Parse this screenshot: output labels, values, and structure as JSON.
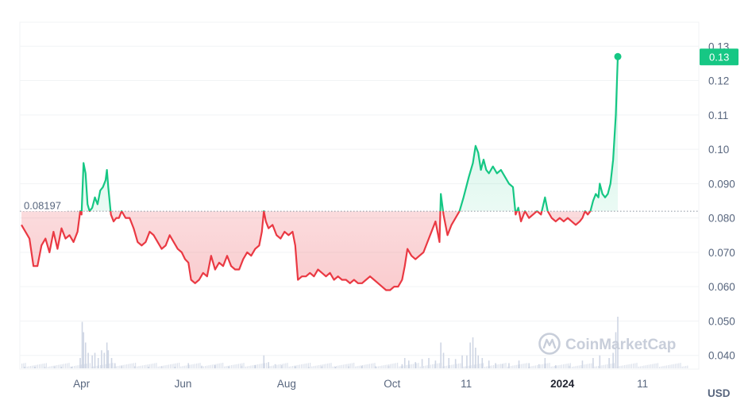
{
  "chart_data": {
    "type": "line",
    "reference_value": 0.08197,
    "reference_label": "0.08197",
    "current_value": 0.127,
    "current_label": "0.13",
    "currency_label": "USD",
    "watermark": "CoinMarketCap",
    "ylim": [
      0.036,
      0.137
    ],
    "y_ticks": [
      {
        "value": 0.13,
        "label": "0.13"
      },
      {
        "value": 0.12,
        "label": "0.12"
      },
      {
        "value": 0.11,
        "label": "0.11"
      },
      {
        "value": 0.1,
        "label": "0.10"
      },
      {
        "value": 0.09,
        "label": "0.090"
      },
      {
        "value": 0.08,
        "label": "0.080"
      },
      {
        "value": 0.07,
        "label": "0.070"
      },
      {
        "value": 0.06,
        "label": "0.060"
      },
      {
        "value": 0.05,
        "label": "0.050"
      },
      {
        "value": 0.04,
        "label": "0.040"
      }
    ],
    "x_ticks": [
      {
        "t": 0.09,
        "label": "Apr",
        "bold": false
      },
      {
        "t": 0.242,
        "label": "Jun",
        "bold": false
      },
      {
        "t": 0.397,
        "label": "Aug",
        "bold": false
      },
      {
        "t": 0.555,
        "label": "Oct",
        "bold": false
      },
      {
        "t": 0.666,
        "label": "11",
        "bold": false
      },
      {
        "t": 0.81,
        "label": "2024",
        "bold": true
      },
      {
        "t": 0.93,
        "label": "11",
        "bold": false
      }
    ],
    "series": [
      {
        "values": [
          [
            0.0,
            0.078
          ],
          [
            0.006,
            0.076
          ],
          [
            0.012,
            0.074
          ],
          [
            0.018,
            0.066
          ],
          [
            0.024,
            0.066
          ],
          [
            0.03,
            0.072
          ],
          [
            0.036,
            0.074
          ],
          [
            0.042,
            0.07
          ],
          [
            0.048,
            0.076
          ],
          [
            0.054,
            0.071
          ],
          [
            0.06,
            0.077
          ],
          [
            0.066,
            0.074
          ],
          [
            0.072,
            0.075
          ],
          [
            0.078,
            0.073
          ],
          [
            0.084,
            0.076
          ],
          [
            0.088,
            0.082
          ],
          [
            0.09,
            0.081
          ],
          [
            0.093,
            0.096
          ],
          [
            0.096,
            0.093
          ],
          [
            0.099,
            0.084
          ],
          [
            0.102,
            0.082
          ],
          [
            0.106,
            0.083
          ],
          [
            0.11,
            0.086
          ],
          [
            0.114,
            0.084
          ],
          [
            0.118,
            0.088
          ],
          [
            0.122,
            0.089
          ],
          [
            0.126,
            0.091
          ],
          [
            0.128,
            0.094
          ],
          [
            0.13,
            0.089
          ],
          [
            0.134,
            0.081
          ],
          [
            0.138,
            0.079
          ],
          [
            0.142,
            0.08
          ],
          [
            0.146,
            0.08
          ],
          [
            0.15,
            0.082
          ],
          [
            0.156,
            0.08
          ],
          [
            0.162,
            0.08
          ],
          [
            0.168,
            0.077
          ],
          [
            0.174,
            0.073
          ],
          [
            0.18,
            0.072
          ],
          [
            0.186,
            0.073
          ],
          [
            0.192,
            0.076
          ],
          [
            0.198,
            0.075
          ],
          [
            0.204,
            0.073
          ],
          [
            0.21,
            0.071
          ],
          [
            0.216,
            0.072
          ],
          [
            0.222,
            0.075
          ],
          [
            0.228,
            0.073
          ],
          [
            0.234,
            0.071
          ],
          [
            0.24,
            0.07
          ],
          [
            0.245,
            0.068
          ],
          [
            0.25,
            0.067
          ],
          [
            0.254,
            0.062
          ],
          [
            0.26,
            0.061
          ],
          [
            0.266,
            0.062
          ],
          [
            0.272,
            0.064
          ],
          [
            0.278,
            0.063
          ],
          [
            0.284,
            0.069
          ],
          [
            0.29,
            0.065
          ],
          [
            0.296,
            0.067
          ],
          [
            0.302,
            0.066
          ],
          [
            0.308,
            0.069
          ],
          [
            0.314,
            0.066
          ],
          [
            0.32,
            0.065
          ],
          [
            0.326,
            0.065
          ],
          [
            0.332,
            0.068
          ],
          [
            0.338,
            0.07
          ],
          [
            0.344,
            0.069
          ],
          [
            0.35,
            0.071
          ],
          [
            0.356,
            0.072
          ],
          [
            0.36,
            0.076
          ],
          [
            0.363,
            0.082
          ],
          [
            0.366,
            0.079
          ],
          [
            0.37,
            0.077
          ],
          [
            0.376,
            0.078
          ],
          [
            0.382,
            0.075
          ],
          [
            0.388,
            0.074
          ],
          [
            0.394,
            0.076
          ],
          [
            0.4,
            0.075
          ],
          [
            0.406,
            0.076
          ],
          [
            0.41,
            0.072
          ],
          [
            0.414,
            0.062
          ],
          [
            0.42,
            0.063
          ],
          [
            0.426,
            0.063
          ],
          [
            0.432,
            0.064
          ],
          [
            0.438,
            0.063
          ],
          [
            0.444,
            0.065
          ],
          [
            0.45,
            0.064
          ],
          [
            0.456,
            0.063
          ],
          [
            0.462,
            0.064
          ],
          [
            0.468,
            0.062
          ],
          [
            0.474,
            0.063
          ],
          [
            0.48,
            0.062
          ],
          [
            0.486,
            0.062
          ],
          [
            0.492,
            0.061
          ],
          [
            0.498,
            0.062
          ],
          [
            0.504,
            0.061
          ],
          [
            0.51,
            0.061
          ],
          [
            0.516,
            0.062
          ],
          [
            0.522,
            0.063
          ],
          [
            0.528,
            0.062
          ],
          [
            0.534,
            0.061
          ],
          [
            0.54,
            0.06
          ],
          [
            0.546,
            0.059
          ],
          [
            0.552,
            0.059
          ],
          [
            0.558,
            0.06
          ],
          [
            0.564,
            0.06
          ],
          [
            0.57,
            0.062
          ],
          [
            0.574,
            0.066
          ],
          [
            0.578,
            0.071
          ],
          [
            0.584,
            0.069
          ],
          [
            0.59,
            0.068
          ],
          [
            0.596,
            0.069
          ],
          [
            0.602,
            0.07
          ],
          [
            0.608,
            0.073
          ],
          [
            0.614,
            0.076
          ],
          [
            0.62,
            0.079
          ],
          [
            0.626,
            0.073
          ],
          [
            0.628,
            0.087
          ],
          [
            0.632,
            0.081
          ],
          [
            0.638,
            0.075
          ],
          [
            0.644,
            0.078
          ],
          [
            0.65,
            0.08
          ],
          [
            0.656,
            0.082
          ],
          [
            0.662,
            0.086
          ],
          [
            0.666,
            0.089
          ],
          [
            0.67,
            0.092
          ],
          [
            0.676,
            0.096
          ],
          [
            0.68,
            0.101
          ],
          [
            0.684,
            0.099
          ],
          [
            0.688,
            0.094
          ],
          [
            0.692,
            0.097
          ],
          [
            0.696,
            0.094
          ],
          [
            0.7,
            0.093
          ],
          [
            0.706,
            0.095
          ],
          [
            0.712,
            0.093
          ],
          [
            0.718,
            0.094
          ],
          [
            0.724,
            0.092
          ],
          [
            0.73,
            0.09
          ],
          [
            0.736,
            0.089
          ],
          [
            0.74,
            0.081
          ],
          [
            0.744,
            0.083
          ],
          [
            0.748,
            0.079
          ],
          [
            0.754,
            0.082
          ],
          [
            0.76,
            0.08
          ],
          [
            0.766,
            0.081
          ],
          [
            0.772,
            0.082
          ],
          [
            0.778,
            0.081
          ],
          [
            0.784,
            0.086
          ],
          [
            0.788,
            0.082
          ],
          [
            0.794,
            0.08
          ],
          [
            0.8,
            0.079
          ],
          [
            0.806,
            0.08
          ],
          [
            0.812,
            0.079
          ],
          [
            0.818,
            0.08
          ],
          [
            0.824,
            0.079
          ],
          [
            0.83,
            0.078
          ],
          [
            0.836,
            0.079
          ],
          [
            0.84,
            0.08
          ],
          [
            0.844,
            0.082
          ],
          [
            0.848,
            0.081
          ],
          [
            0.852,
            0.082
          ],
          [
            0.856,
            0.085
          ],
          [
            0.86,
            0.087
          ],
          [
            0.864,
            0.086
          ],
          [
            0.866,
            0.09
          ],
          [
            0.87,
            0.087
          ],
          [
            0.874,
            0.086
          ],
          [
            0.878,
            0.087
          ],
          [
            0.882,
            0.09
          ],
          [
            0.886,
            0.097
          ],
          [
            0.89,
            0.11
          ],
          [
            0.893,
            0.127
          ]
        ]
      }
    ],
    "volume": [
      [
        0.005,
        0.02
      ],
      [
        0.02,
        0.03
      ],
      [
        0.035,
        0.02
      ],
      [
        0.05,
        0.04
      ],
      [
        0.06,
        0.03
      ],
      [
        0.075,
        0.02
      ],
      [
        0.088,
        0.2
      ],
      [
        0.091,
        0.9
      ],
      [
        0.093,
        0.7
      ],
      [
        0.096,
        0.5
      ],
      [
        0.1,
        0.3
      ],
      [
        0.106,
        0.25
      ],
      [
        0.11,
        0.3
      ],
      [
        0.115,
        0.2
      ],
      [
        0.12,
        0.35
      ],
      [
        0.124,
        0.3
      ],
      [
        0.128,
        0.5
      ],
      [
        0.13,
        0.35
      ],
      [
        0.135,
        0.2
      ],
      [
        0.14,
        0.1
      ],
      [
        0.15,
        0.05
      ],
      [
        0.17,
        0.04
      ],
      [
        0.19,
        0.03
      ],
      [
        0.21,
        0.04
      ],
      [
        0.23,
        0.03
      ],
      [
        0.25,
        0.1
      ],
      [
        0.27,
        0.05
      ],
      [
        0.29,
        0.06
      ],
      [
        0.31,
        0.04
      ],
      [
        0.33,
        0.05
      ],
      [
        0.35,
        0.06
      ],
      [
        0.363,
        0.25
      ],
      [
        0.37,
        0.12
      ],
      [
        0.38,
        0.08
      ],
      [
        0.39,
        0.06
      ],
      [
        0.41,
        0.04
      ],
      [
        0.43,
        0.03
      ],
      [
        0.45,
        0.04
      ],
      [
        0.47,
        0.03
      ],
      [
        0.49,
        0.04
      ],
      [
        0.51,
        0.05
      ],
      [
        0.53,
        0.04
      ],
      [
        0.55,
        0.05
      ],
      [
        0.57,
        0.08
      ],
      [
        0.574,
        0.2
      ],
      [
        0.58,
        0.15
      ],
      [
        0.59,
        0.12
      ],
      [
        0.6,
        0.18
      ],
      [
        0.61,
        0.2
      ],
      [
        0.62,
        0.15
      ],
      [
        0.628,
        0.5
      ],
      [
        0.632,
        0.3
      ],
      [
        0.64,
        0.2
      ],
      [
        0.65,
        0.18
      ],
      [
        0.66,
        0.25
      ],
      [
        0.667,
        0.25
      ],
      [
        0.672,
        0.5
      ],
      [
        0.676,
        0.6
      ],
      [
        0.68,
        0.4
      ],
      [
        0.684,
        0.25
      ],
      [
        0.69,
        0.2
      ],
      [
        0.7,
        0.15
      ],
      [
        0.71,
        0.1
      ],
      [
        0.72,
        0.08
      ],
      [
        0.73,
        0.1
      ],
      [
        0.745,
        0.15
      ],
      [
        0.76,
        0.1
      ],
      [
        0.775,
        0.08
      ],
      [
        0.784,
        0.2
      ],
      [
        0.8,
        0.06
      ],
      [
        0.82,
        0.05
      ],
      [
        0.84,
        0.15
      ],
      [
        0.856,
        0.2
      ],
      [
        0.866,
        0.25
      ],
      [
        0.88,
        0.2
      ],
      [
        0.886,
        0.3
      ],
      [
        0.89,
        0.7
      ],
      [
        0.893,
        1.0
      ]
    ],
    "colors": {
      "up": "#16c784",
      "down": "#ea3943",
      "grid": "#f1f3f5",
      "axis_text": "#58667e",
      "reference_line": "#8a939f",
      "volume": "#cfd6e4",
      "badge_text": "#ffffff",
      "watermark": "#c8ceda"
    }
  }
}
